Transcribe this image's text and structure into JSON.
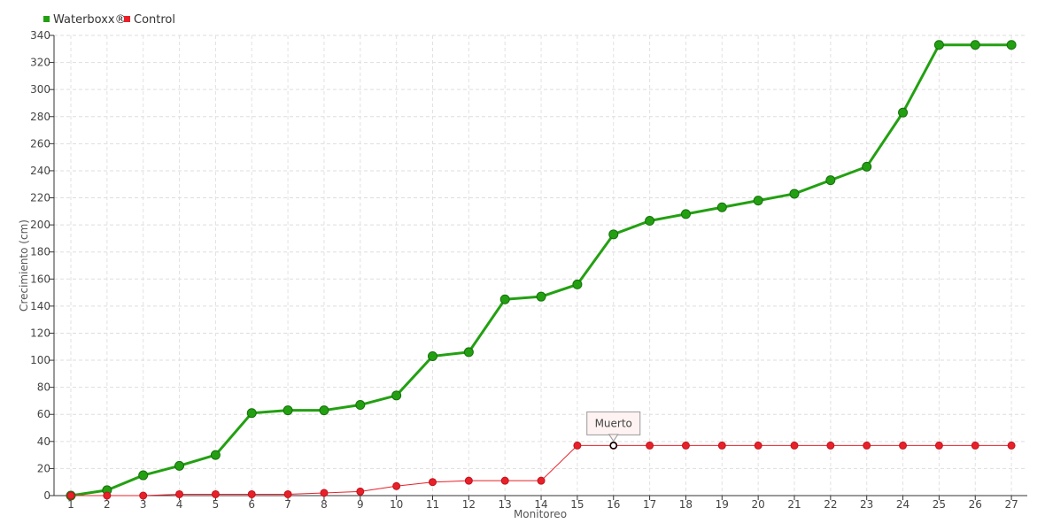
{
  "chart_data": {
    "type": "line",
    "xlabel": "Monitoreo",
    "ylabel": "Crecimiento (cm)",
    "categories": [
      "1",
      "2",
      "3",
      "4",
      "5",
      "6",
      "7",
      "8",
      "9",
      "10",
      "11",
      "12",
      "13",
      "14",
      "15",
      "16",
      "17",
      "18",
      "19",
      "20",
      "21",
      "22",
      "23",
      "24",
      "25",
      "26",
      "27"
    ],
    "ylim": [
      0,
      340
    ],
    "yticks": [
      0,
      20,
      40,
      60,
      80,
      100,
      120,
      140,
      160,
      180,
      200,
      220,
      240,
      260,
      280,
      300,
      320,
      340
    ],
    "grid": true,
    "legend_position": "top-left",
    "series": [
      {
        "name": "Waterboxx®",
        "color": "#23a012",
        "values": [
          0,
          4,
          15,
          22,
          30,
          61,
          63,
          63,
          67,
          74,
          103,
          106,
          145,
          147,
          156,
          193,
          203,
          208,
          213,
          218,
          223,
          233,
          243,
          283,
          333,
          333,
          333
        ]
      },
      {
        "name": "Control",
        "color": "#e8202a",
        "values": [
          0,
          0,
          0,
          1,
          1,
          1,
          1,
          2,
          3,
          7,
          10,
          11,
          11,
          11,
          37,
          37,
          37,
          37,
          37,
          37,
          37,
          37,
          37,
          37,
          37,
          37,
          37
        ]
      }
    ],
    "annotations": [
      {
        "text": "Muerto",
        "series": "Control",
        "x": "16",
        "y": 37
      }
    ]
  }
}
